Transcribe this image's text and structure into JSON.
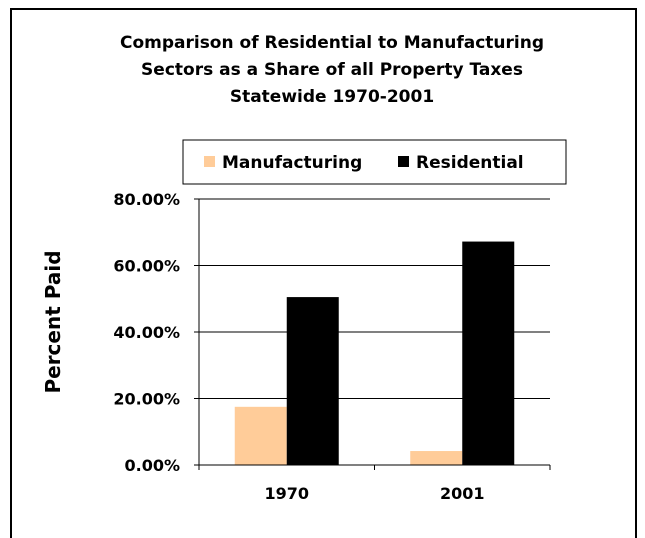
{
  "chart_data": {
    "type": "bar",
    "title_lines": [
      "Comparison of Residential to Manufacturing",
      "Sectors as a Share of all Property Taxes",
      "Statewide 1970-2001"
    ],
    "xlabel": "",
    "ylabel": "Percent Paid",
    "categories": [
      "1970",
      "2001"
    ],
    "series": [
      {
        "name": "Manufacturing",
        "values": [
          0.175,
          0.042
        ],
        "color": "#FFCC99"
      },
      {
        "name": "Residential",
        "values": [
          0.505,
          0.672
        ],
        "color": "#000000"
      }
    ],
    "ylim": [
      0,
      0.8
    ],
    "yticks": [
      0,
      0.2,
      0.4,
      0.6,
      0.8
    ],
    "ytick_labels": [
      "0.00%",
      "20.00%",
      "40.00%",
      "60.00%",
      "80.00%"
    ],
    "grid": true,
    "legend_position": "top"
  }
}
